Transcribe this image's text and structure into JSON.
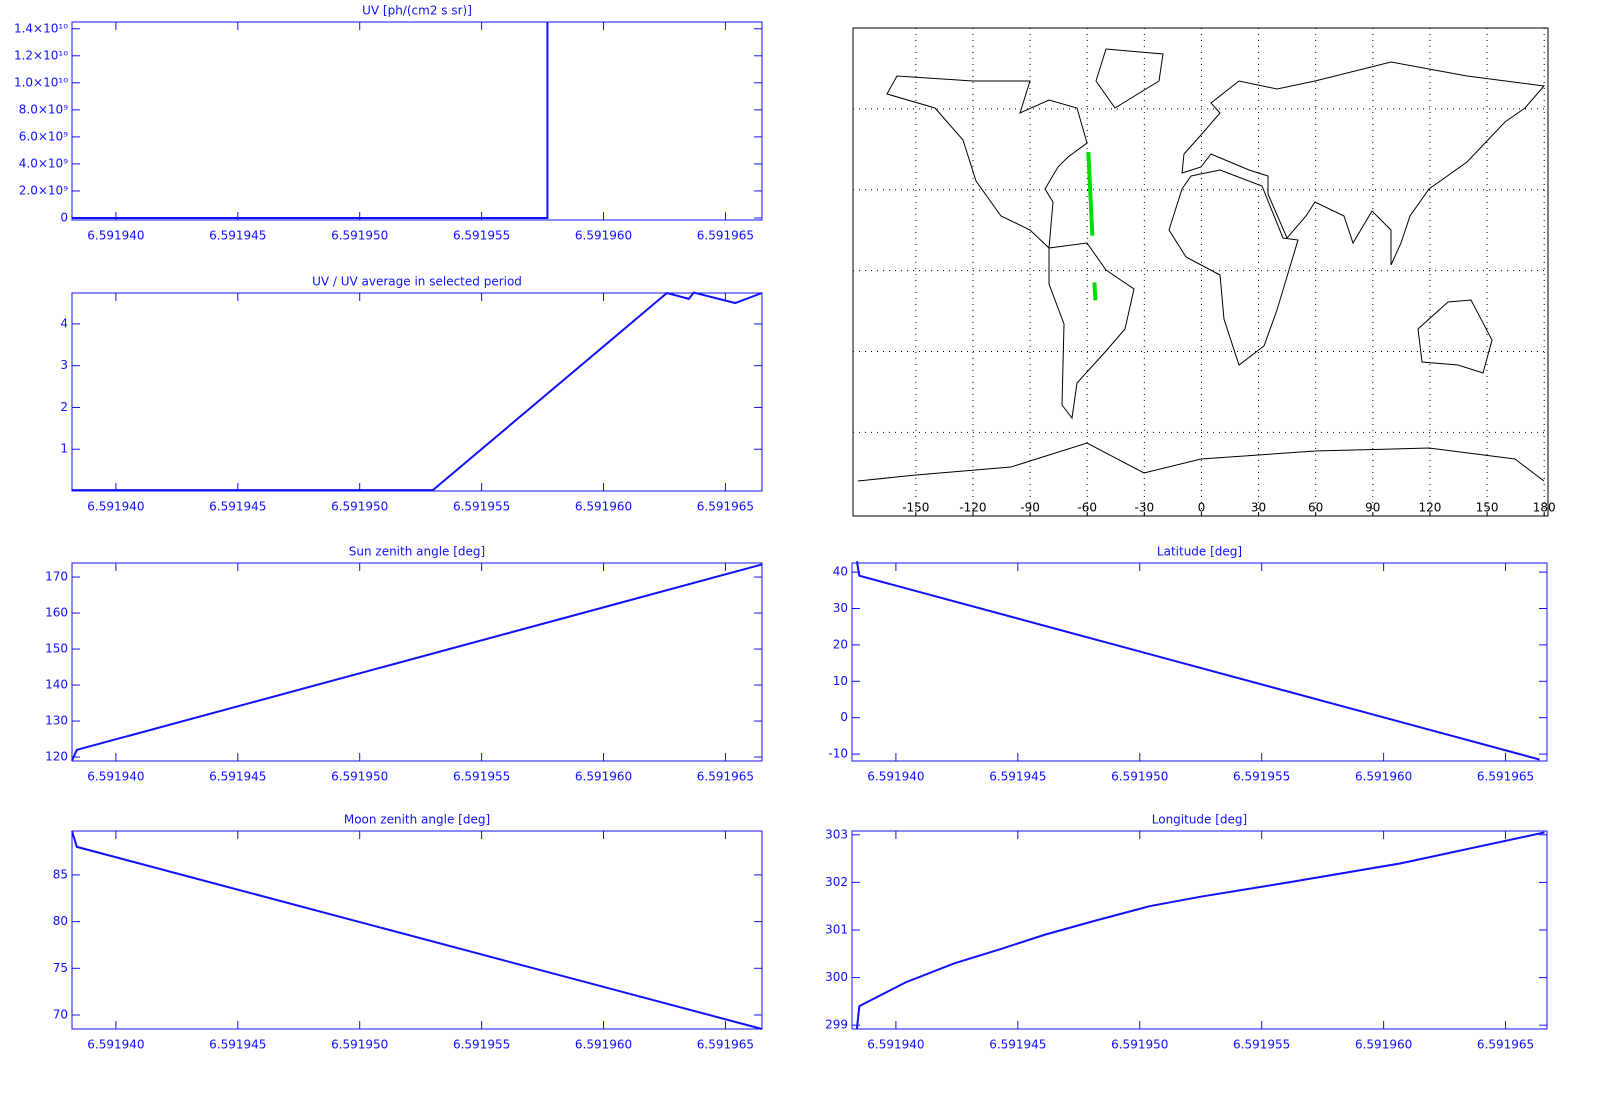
{
  "chart_data": [
    {
      "type": "line",
      "title": "UV [ph/(cm2 s sr)]",
      "color": "#1010ff",
      "x": [
        6.5919382,
        6.59194,
        6.5919577,
        6.5919577
      ],
      "values": [
        0,
        0,
        0,
        14500000000
      ],
      "xlim": [
        6.5919382,
        6.5919665
      ],
      "xticks": [
        {
          "value": 6.59194,
          "label": "6.591940"
        },
        {
          "value": 6.591945,
          "label": "6.591945"
        },
        {
          "value": 6.59195,
          "label": "6.591950"
        },
        {
          "value": 6.591955,
          "label": "6.591955"
        },
        {
          "value": 6.59196,
          "label": "6.591960"
        },
        {
          "value": 6.591965,
          "label": "6.591965"
        }
      ],
      "ylim": [
        -150000000,
        14500000000
      ],
      "yticks": [
        0,
        {
          "value": 2000000000,
          "label": "2.0×10⁹"
        },
        {
          "value": 4000000000,
          "label": "4.0×10⁹"
        },
        {
          "value": 6000000000,
          "label": "6.0×10⁹"
        },
        {
          "value": 8000000000,
          "label": "8.0×10⁹"
        },
        {
          "value": 10000000000,
          "label": "1.0×10¹⁰"
        },
        {
          "value": 12000000000,
          "label": "1.2×10¹⁰"
        },
        {
          "value": 14000000000,
          "label": "1.4×10¹⁰"
        }
      ]
    },
    {
      "type": "line",
      "title": "UV / UV average in selected period",
      "color": "#1010ff",
      "x": [
        6.5919382,
        6.591953,
        6.5919626,
        6.5919635,
        6.5919637,
        6.5919654,
        6.5919665
      ],
      "values": [
        0.02,
        0.02,
        4.74,
        4.6,
        4.75,
        4.5,
        4.74
      ],
      "xlim": [
        6.5919382,
        6.5919665
      ],
      "xticks": [
        {
          "value": 6.59194,
          "label": "6.591940"
        },
        {
          "value": 6.591945,
          "label": "6.591945"
        },
        {
          "value": 6.59195,
          "label": "6.591950"
        },
        {
          "value": 6.591955,
          "label": "6.591955"
        },
        {
          "value": 6.59196,
          "label": "6.591960"
        },
        {
          "value": 6.591965,
          "label": "6.591965"
        }
      ],
      "ylim": [
        0,
        4.74
      ],
      "yticks": [
        1,
        2,
        3,
        4
      ]
    },
    {
      "type": "map",
      "color": "#00dd00",
      "lon": [
        -59.4,
        -57.3,
        null,
        -56.2,
        -55.7
      ],
      "lat": [
        44,
        13,
        null,
        -4.4,
        -11
      ],
      "xlim": [
        -183,
        182
      ],
      "xticks": [
        -150,
        -120,
        -90,
        -60,
        -30,
        0,
        30,
        60,
        90,
        120,
        150,
        180
      ],
      "ylim": [
        -91,
        90
      ],
      "ygrid": [
        -60,
        -30,
        0,
        30,
        60
      ]
    },
    {
      "type": "line",
      "title": "Sun zenith angle [deg]",
      "color": "#1010ff",
      "x": [
        6.5919382,
        6.5919384,
        6.5919665
      ],
      "values": [
        119,
        122,
        173.5
      ],
      "xlim": [
        6.5919382,
        6.5919665
      ],
      "xticks": [
        {
          "value": 6.59194,
          "label": "6.591940"
        },
        {
          "value": 6.591945,
          "label": "6.591945"
        },
        {
          "value": 6.59195,
          "label": "6.591950"
        },
        {
          "value": 6.591955,
          "label": "6.591955"
        },
        {
          "value": 6.59196,
          "label": "6.591960"
        },
        {
          "value": 6.591965,
          "label": "6.591965"
        }
      ],
      "ylim": [
        118.9,
        173.9
      ],
      "yticks": [
        120,
        130,
        140,
        150,
        160,
        170
      ]
    },
    {
      "type": "line",
      "title": "Latitude [deg]",
      "color": "#1010ff",
      "x": [
        6.5919384,
        6.5919385,
        6.5919664
      ],
      "values": [
        43,
        39,
        -11.5
      ],
      "xlim": [
        6.5919382,
        6.5919667
      ],
      "xticks": [
        {
          "value": 6.59194,
          "label": "6.591940"
        },
        {
          "value": 6.591945,
          "label": "6.591945"
        },
        {
          "value": 6.59195,
          "label": "6.591950"
        },
        {
          "value": 6.591955,
          "label": "6.591955"
        },
        {
          "value": 6.59196,
          "label": "6.591960"
        },
        {
          "value": 6.591965,
          "label": "6.591965"
        }
      ],
      "ylim": [
        -11.9,
        42.5
      ],
      "yticks": [
        -10,
        0,
        10,
        20,
        30,
        40
      ]
    },
    {
      "type": "line",
      "title": "Moon zenith angle [deg]",
      "color": "#1010ff",
      "x": [
        6.5919382,
        6.5919384,
        6.5919665
      ],
      "values": [
        89.7,
        88,
        68.5
      ],
      "xlim": [
        6.5919382,
        6.5919665
      ],
      "xticks": [
        {
          "value": 6.59194,
          "label": "6.591940"
        },
        {
          "value": 6.591945,
          "label": "6.591945"
        },
        {
          "value": 6.59195,
          "label": "6.591950"
        },
        {
          "value": 6.591955,
          "label": "6.591955"
        },
        {
          "value": 6.59196,
          "label": "6.591960"
        },
        {
          "value": 6.591965,
          "label": "6.591965"
        }
      ],
      "ylim": [
        68.5,
        89.7
      ],
      "yticks": [
        70,
        75,
        80,
        85
      ]
    },
    {
      "type": "line",
      "title": "Longitude [deg]",
      "color": "#1010ff",
      "x": [
        6.5919384,
        6.5919385,
        6.5919404,
        6.5919424,
        6.5919443,
        6.5919461,
        6.5919482,
        6.5919504,
        6.5919525,
        6.5919561,
        6.5919607,
        6.5919666
      ],
      "values": [
        298.92,
        299.4,
        299.9,
        300.3,
        300.6,
        300.9,
        301.2,
        301.5,
        301.7,
        302,
        302.4,
        303.05
      ],
      "xlim": [
        6.5919382,
        6.5919667
      ],
      "xticks": [
        {
          "value": 6.59194,
          "label": "6.591940"
        },
        {
          "value": 6.591945,
          "label": "6.591945"
        },
        {
          "value": 6.59195,
          "label": "6.591950"
        },
        {
          "value": 6.591955,
          "label": "6.591955"
        },
        {
          "value": 6.59196,
          "label": "6.591960"
        },
        {
          "value": 6.591965,
          "label": "6.591965"
        }
      ],
      "ylim": [
        298.92,
        303.08
      ],
      "yticks": [
        299,
        300,
        301,
        302,
        303
      ]
    }
  ]
}
